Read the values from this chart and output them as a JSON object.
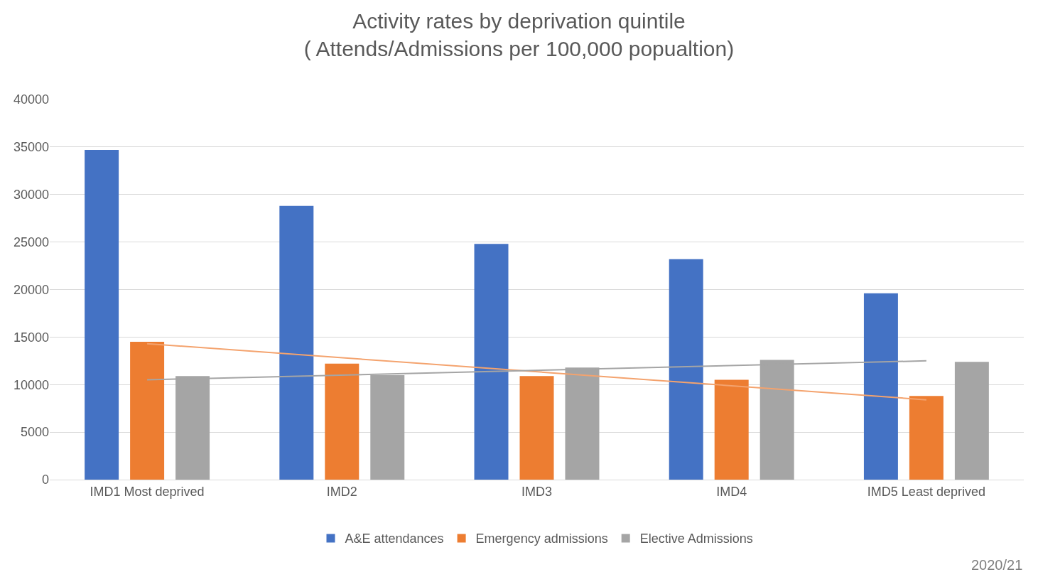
{
  "chart_data": {
    "type": "bar",
    "title": "Activity rates by deprivation quintile\n( Attends/Admissions per 100,000 popualtion)",
    "categories": [
      "IMD1 Most deprived",
      "IMD2",
      "IMD3",
      "IMD4",
      "IMD5 Least deprived"
    ],
    "series": [
      {
        "name": "A&E attendances",
        "color": "#4472c4",
        "values": [
          34700,
          28800,
          24800,
          23200,
          19600
        ]
      },
      {
        "name": "Emergency admissions",
        "color": "#ed7d31",
        "values": [
          14500,
          12200,
          10900,
          10500,
          8800
        ]
      },
      {
        "name": "Elective Admissions",
        "color": "#a5a5a5",
        "values": [
          10900,
          11000,
          11800,
          12600,
          12400
        ]
      },
      {
        "type": "line",
        "color": "#f4a36e",
        "x": [
          "IMD1 Most deprived",
          "IMD5 Least deprived"
        ],
        "values": [
          14300,
          8400
        ]
      },
      {
        "type": "line",
        "color": "#a5a5a5",
        "x": [
          "IMD1 Most deprived",
          "IMD5 Least deprived"
        ],
        "values": [
          10500,
          12500
        ]
      }
    ],
    "ylim": [
      0,
      40000
    ],
    "yticks": [
      0,
      5000,
      10000,
      15000,
      20000,
      25000,
      30000,
      35000,
      40000
    ],
    "grid": "y",
    "legend": "bottom",
    "marker": "none",
    "line_style": "solid",
    "annotations": [
      "2020/21"
    ]
  }
}
